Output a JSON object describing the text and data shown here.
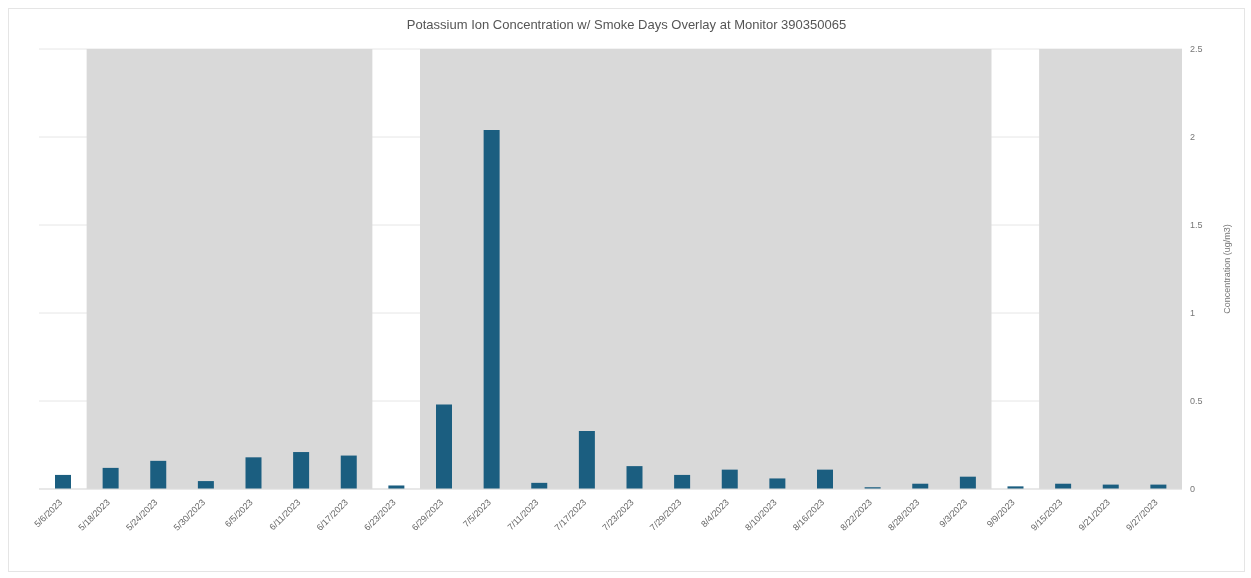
{
  "chart_data": {
    "type": "bar",
    "title": "Potassium Ion Concentration w/ Smoke Days Overlay at Monitor 390350065",
    "ylabel": "Concentration (ug/m3)",
    "categories": [
      "5/6/2023",
      "5/18/2023",
      "5/24/2023",
      "5/30/2023",
      "6/5/2023",
      "6/11/2023",
      "6/17/2023",
      "6/23/2023",
      "6/29/2023",
      "7/5/2023",
      "7/11/2023",
      "7/17/2023",
      "7/23/2023",
      "7/29/2023",
      "8/4/2023",
      "8/10/2023",
      "8/16/2023",
      "8/22/2023",
      "8/28/2023",
      "9/3/2023",
      "9/9/2023",
      "9/15/2023",
      "9/21/2023",
      "9/27/2023"
    ],
    "values": [
      0.08,
      0.12,
      0.16,
      0.045,
      0.18,
      0.21,
      0.19,
      0.02,
      0.48,
      2.04,
      0.035,
      0.33,
      0.13,
      0.08,
      0.11,
      0.06,
      0.11,
      0.01,
      0.03,
      0.07,
      0.015,
      0.03,
      0.025,
      0.025
    ],
    "color": "#1b5e80",
    "ylim": [
      0,
      2.5
    ],
    "yticks": [
      0,
      {
        "value": 0.5,
        "label": "0.5"
      },
      1,
      {
        "value": 1.5,
        "label": "1.5"
      },
      2,
      {
        "value": 2.5,
        "label": "2.5"
      }
    ],
    "grid": "y",
    "legend": false,
    "bands": [
      {
        "axis": "x",
        "from": "5/18/2023",
        "to": "6/17/2023",
        "color": "#d9d9d9"
      },
      {
        "axis": "x",
        "from": "6/29/2023",
        "to": "9/3/2023",
        "color": "#d9d9d9"
      },
      {
        "axis": "x",
        "from": "9/15/2023",
        "to": "9/27/2023",
        "color": "#d9d9d9"
      }
    ]
  }
}
